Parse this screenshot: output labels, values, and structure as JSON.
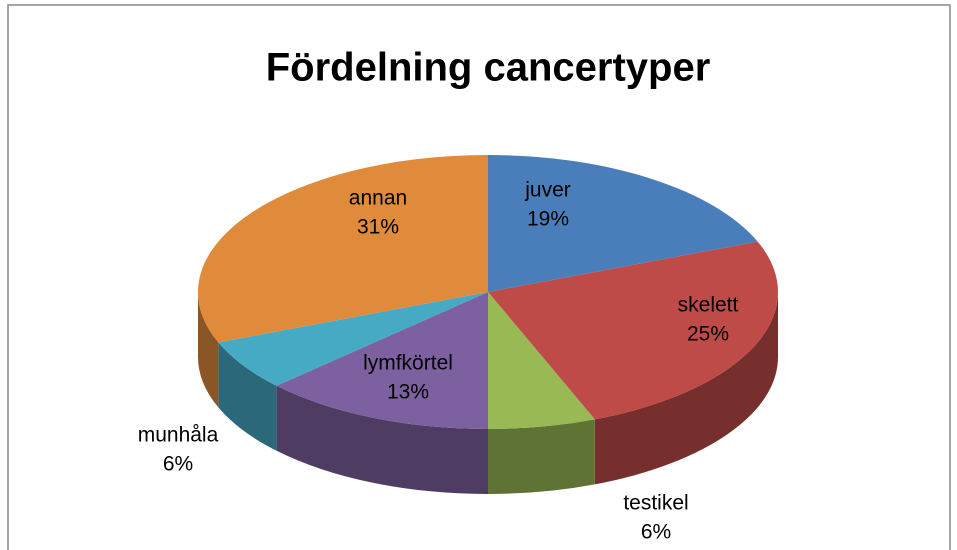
{
  "chart_data": {
    "type": "pie",
    "title": "Fördelning cancertyper",
    "categories": [
      "juver",
      "skelett",
      "testikel",
      "lymfkörtel",
      "munhåla",
      "annan"
    ],
    "values": [
      19,
      25,
      6,
      13,
      6,
      31
    ],
    "value_labels": [
      "19%",
      "25%",
      "6%",
      "13%",
      "6%",
      "31%"
    ],
    "colors": [
      "#4a7ebb",
      "#be4b48",
      "#98b954",
      "#7d60a0",
      "#46aac5",
      "#e08a3c"
    ]
  }
}
